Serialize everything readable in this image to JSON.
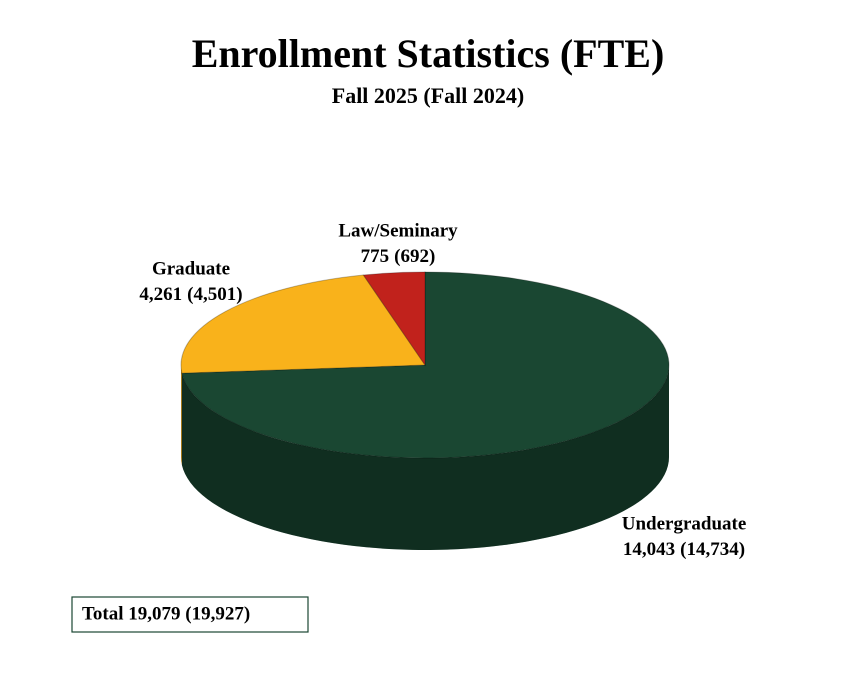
{
  "chart_data": {
    "type": "pie",
    "title": "Enrollment Statistics (FTE)",
    "subtitle": "Fall 2025 (Fall 2024)",
    "categories": [
      "Undergraduate",
      "Graduate",
      "Law/Seminary"
    ],
    "values": [
      14043,
      4261,
      775
    ],
    "value_labels": [
      "14,043",
      "4,261",
      "775"
    ],
    "prior_labels": [
      "(14,734)",
      "(4,501)",
      "(692)"
    ],
    "colors": [
      "#1a4732",
      "#f9b21b",
      "#c1221c"
    ],
    "total": "Total 19,079 (19,927)"
  }
}
